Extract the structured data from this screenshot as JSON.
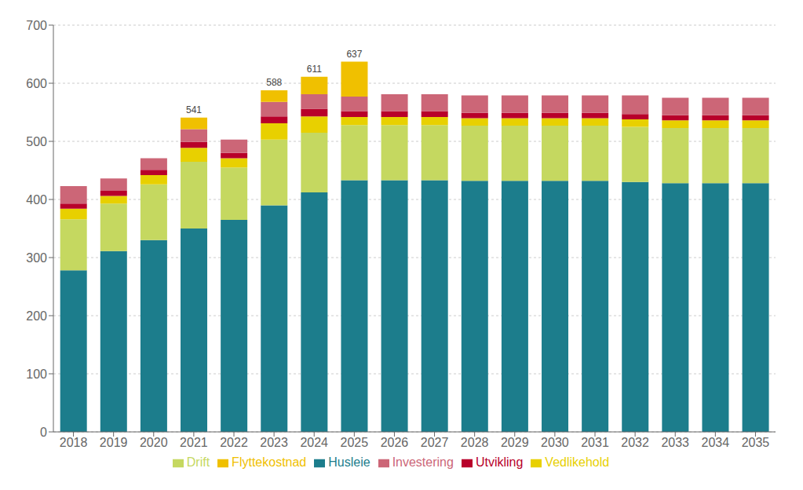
{
  "chart_data": {
    "type": "bar",
    "stacked": true,
    "categories": [
      "2018",
      "2019",
      "2020",
      "2021",
      "2022",
      "2023",
      "2024",
      "2025",
      "2026",
      "2027",
      "2028",
      "2029",
      "2030",
      "2031",
      "2032",
      "2033",
      "2034",
      "2035"
    ],
    "series": [
      {
        "name": "Husleie",
        "color": "#1c7d8c",
        "values": [
          278,
          311,
          330,
          350,
          365,
          390,
          412,
          433,
          433,
          433,
          432,
          432,
          432,
          432,
          430,
          428,
          428,
          428
        ]
      },
      {
        "name": "Drift",
        "color": "#c5d860",
        "values": [
          88,
          82,
          96,
          115,
          90,
          113,
          103,
          95,
          95,
          95,
          95,
          95,
          95,
          95,
          95,
          95,
          95,
          95
        ]
      },
      {
        "name": "Vedlikehold",
        "color": "#e8d000",
        "values": [
          18,
          13,
          16,
          24,
          16,
          28,
          28,
          14,
          14,
          14,
          13,
          13,
          13,
          13,
          13,
          13,
          13,
          13
        ]
      },
      {
        "name": "Utvikling",
        "color": "#b8002a",
        "values": [
          9,
          9,
          9,
          10,
          9,
          12,
          13,
          10,
          10,
          10,
          9,
          9,
          9,
          9,
          9,
          9,
          9,
          9
        ]
      },
      {
        "name": "Investering",
        "color": "#cc6677",
        "values": [
          30,
          21,
          20,
          22,
          23,
          25,
          25,
          25,
          29,
          29,
          30,
          30,
          30,
          30,
          32,
          30,
          30,
          30
        ]
      },
      {
        "name": "Flyttekostnad",
        "color": "#f0c000",
        "values": [
          0,
          0,
          0,
          20,
          0,
          20,
          30,
          60,
          0,
          0,
          0,
          0,
          0,
          0,
          0,
          0,
          0,
          0
        ]
      }
    ],
    "totals": [
      423,
      436,
      471,
      541,
      503,
      588,
      611,
      637,
      581,
      581,
      579,
      579,
      579,
      579,
      579,
      575,
      575,
      575
    ],
    "ylim": [
      0,
      700
    ],
    "yticks": [
      0,
      100,
      200,
      300,
      400,
      500,
      600,
      700
    ],
    "grid": true,
    "legend": "bottom"
  }
}
